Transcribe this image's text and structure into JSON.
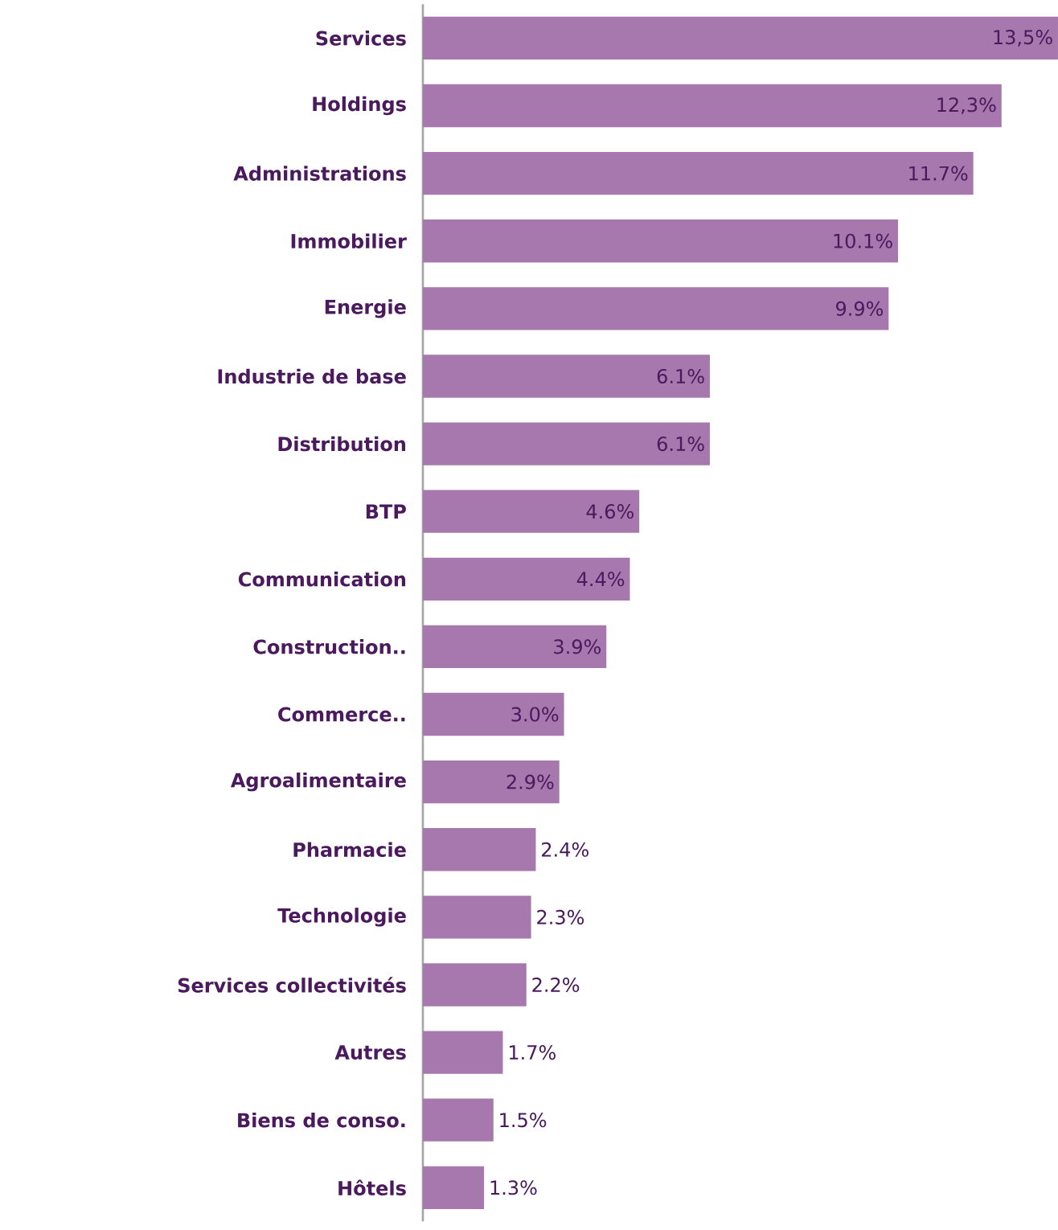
{
  "chart_data": {
    "type": "bar",
    "orientation": "horizontal",
    "color": "#a678ad",
    "categories": [
      "Services",
      "Holdings",
      "Administrations",
      "Immobilier",
      "Energie",
      "Industrie de base",
      "Distribution",
      "BTP",
      "Communication",
      "Construction..",
      "Commerce..",
      "Agroalimentaire",
      "Pharmacie",
      "Technologie",
      "Services collectivités",
      "Autres",
      "Biens de conso.",
      "Hôtels"
    ],
    "values": [
      13.5,
      12.3,
      11.7,
      10.1,
      9.9,
      6.1,
      6.1,
      4.6,
      4.4,
      3.9,
      3.0,
      2.9,
      2.4,
      2.3,
      2.2,
      1.7,
      1.5,
      1.3
    ],
    "value_labels": [
      "13,5%",
      "12,3%",
      "11.7%",
      "10.1%",
      "9.9%",
      "6.1%",
      "6.1%",
      "4.6%",
      "4.4%",
      "3.9%",
      "3.0%",
      "2.9%",
      "2.4%",
      "2.3%",
      "2.2%",
      "1.7%",
      "1.5%",
      "1.3%"
    ]
  }
}
